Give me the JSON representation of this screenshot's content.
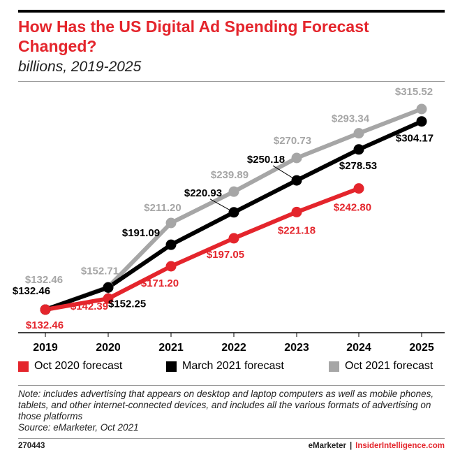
{
  "header": {
    "title": "How Has the US Digital Ad Spending Forecast Changed?",
    "subtitle": "billions, 2019-2025"
  },
  "chart_data": {
    "type": "line",
    "title": "How Has the US Digital Ad Spending Forecast Changed?",
    "subtitle": "billions, 2019-2025",
    "xlabel": "",
    "ylabel": "",
    "categories": [
      "2019",
      "2020",
      "2021",
      "2022",
      "2023",
      "2024",
      "2025"
    ],
    "ylim": [
      100,
      340
    ],
    "grid": false,
    "legend_position": "bottom",
    "series": [
      {
        "name": "Oct 2021 forecast",
        "color": "#a6a6a6",
        "values": [
          132.46,
          152.71,
          211.2,
          239.89,
          270.73,
          293.34,
          315.52
        ],
        "labels": [
          "$132.46",
          "$152.71",
          "$211.20",
          "$239.89",
          "$270.73",
          "$293.34",
          "$315.52"
        ]
      },
      {
        "name": "March 2021 forecast",
        "color": "#000000",
        "values": [
          132.46,
          152.25,
          191.09,
          220.93,
          250.18,
          278.53,
          304.17
        ],
        "labels": [
          "$132.46",
          "$152.25",
          "$191.09",
          "$220.93",
          "$250.18",
          "$278.53",
          "$304.17"
        ]
      },
      {
        "name": "Oct 2020 forecast",
        "color": "#e4252c",
        "values": [
          132.46,
          142.39,
          171.2,
          197.05,
          221.18,
          242.8,
          null
        ],
        "labels": [
          "$132.46",
          "$142.39",
          "$171.20",
          "$197.05",
          "$221.18",
          "$242.80",
          null
        ]
      }
    ]
  },
  "legend": {
    "items": [
      {
        "label": "Oct 2020 forecast",
        "color": "#e4252c"
      },
      {
        "label": "March 2021 forecast",
        "color": "#000000"
      },
      {
        "label": "Oct 2021 forecast",
        "color": "#a6a6a6"
      }
    ]
  },
  "footer": {
    "note": "Note: includes advertising that appears on desktop and laptop computers as well as mobile phones, tablets, and other internet-connected devices, and includes all the various formats of advertising on those platforms",
    "source": "Source: eMarketer, Oct 2021",
    "code": "270443",
    "brand1": "eMarketer",
    "separator": "|",
    "brand2": "InsiderIntelligence.com"
  }
}
